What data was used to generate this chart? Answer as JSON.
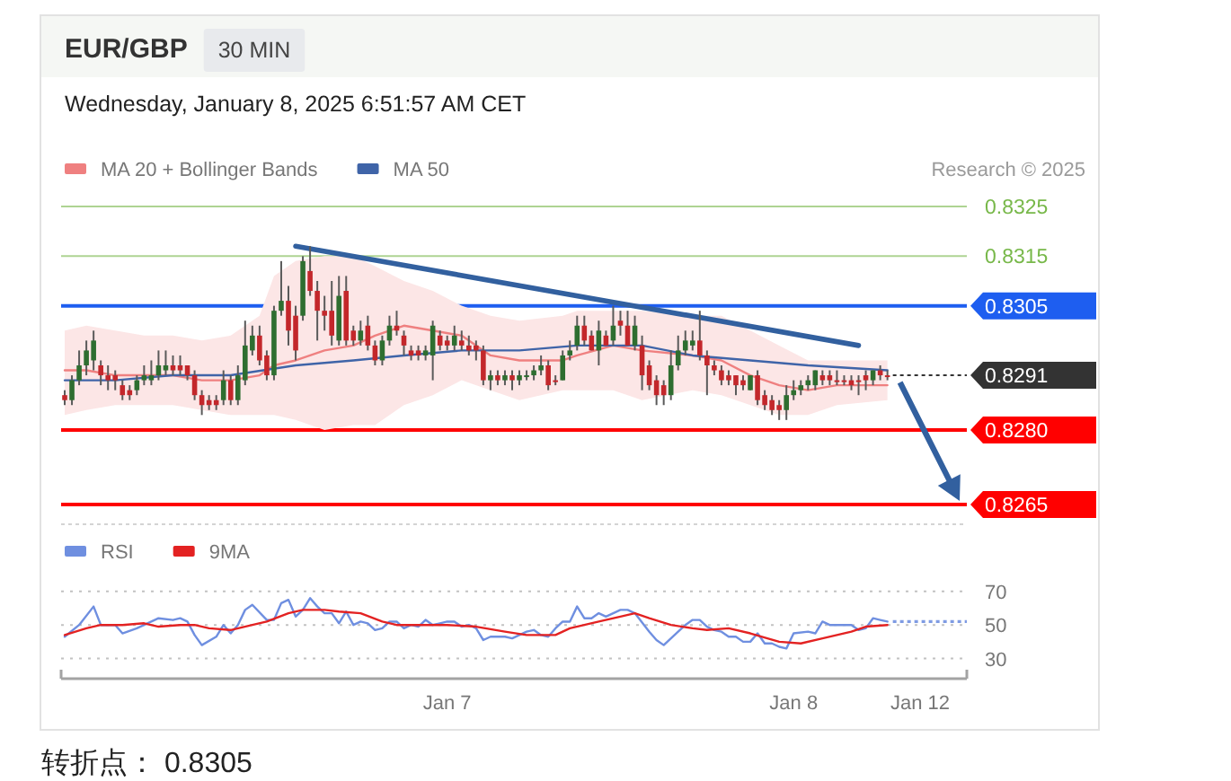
{
  "chart_data": [
    {
      "type": "candlestick",
      "title": "EUR/GBP",
      "subtitle": "Wednesday, January 8, 2025 6:51:57 AM CET",
      "annotations": [
        "30 MIN",
        "Research © 2025"
      ],
      "x": [
        "2025-01-05T21:30",
        "2025-01-05T22:00",
        "2025-01-05T22:30",
        "2025-01-05T23:00",
        "2025-01-05T23:30",
        "2025-01-06T00:00",
        "2025-01-06T00:30",
        "2025-01-06T01:00",
        "2025-01-06T01:30",
        "2025-01-06T02:00",
        "2025-01-06T02:30",
        "2025-01-06T03:00",
        "2025-01-06T03:30",
        "2025-01-06T04:00",
        "2025-01-06T04:30",
        "2025-01-06T05:00",
        "2025-01-06T05:30",
        "2025-01-06T06:00",
        "2025-01-06T06:30",
        "2025-01-06T07:00",
        "2025-01-06T07:30",
        "2025-01-06T08:00",
        "2025-01-06T08:30",
        "2025-01-06T09:00",
        "2025-01-06T09:30",
        "2025-01-06T10:00",
        "2025-01-06T10:30",
        "2025-01-06T11:00",
        "2025-01-06T11:30",
        "2025-01-06T12:00",
        "2025-01-06T12:30",
        "2025-01-06T13:00",
        "2025-01-06T13:30",
        "2025-01-06T14:00",
        "2025-01-06T14:30",
        "2025-01-06T15:00",
        "2025-01-06T15:30",
        "2025-01-06T16:00",
        "2025-01-06T16:30",
        "2025-01-06T17:00",
        "2025-01-06T17:30",
        "2025-01-06T18:00",
        "2025-01-06T18:30",
        "2025-01-06T19:00",
        "2025-01-06T19:30",
        "2025-01-06T20:00",
        "2025-01-06T20:30",
        "2025-01-06T21:00",
        "2025-01-06T21:30",
        "2025-01-06T22:00",
        "2025-01-06T22:30",
        "2025-01-06T23:00",
        "2025-01-06T23:30",
        "2025-01-07T00:00",
        "2025-01-07T00:30",
        "2025-01-07T01:00",
        "2025-01-07T01:30",
        "2025-01-07T02:00",
        "2025-01-07T02:30",
        "2025-01-07T03:00",
        "2025-01-07T03:30",
        "2025-01-07T04:00",
        "2025-01-07T04:30",
        "2025-01-07T05:00",
        "2025-01-07T05:30",
        "2025-01-07T06:00",
        "2025-01-07T06:30",
        "2025-01-07T07:00",
        "2025-01-07T07:30",
        "2025-01-07T08:00",
        "2025-01-07T08:30",
        "2025-01-07T09:00",
        "2025-01-07T09:30",
        "2025-01-07T10:00",
        "2025-01-07T10:30",
        "2025-01-07T11:00",
        "2025-01-07T11:30",
        "2025-01-07T12:00",
        "2025-01-07T12:30",
        "2025-01-07T13:00",
        "2025-01-07T13:30",
        "2025-01-07T14:00",
        "2025-01-07T14:30",
        "2025-01-07T15:00",
        "2025-01-07T15:30",
        "2025-01-07T16:00",
        "2025-01-07T16:30",
        "2025-01-07T17:00",
        "2025-01-07T17:30",
        "2025-01-07T18:00",
        "2025-01-07T18:30",
        "2025-01-07T19:00",
        "2025-01-07T19:30",
        "2025-01-07T20:00",
        "2025-01-07T20:30",
        "2025-01-07T21:00",
        "2025-01-07T21:30",
        "2025-01-07T22:00",
        "2025-01-07T22:30",
        "2025-01-07T23:00",
        "2025-01-07T23:30",
        "2025-01-08T00:00",
        "2025-01-08T00:30",
        "2025-01-08T01:00",
        "2025-01-08T01:30",
        "2025-01-08T02:00",
        "2025-01-08T02:30",
        "2025-01-08T03:00",
        "2025-01-08T03:30",
        "2025-01-08T04:00",
        "2025-01-08T04:30",
        "2025-01-08T05:00",
        "2025-01-08T05:30",
        "2025-01-08T06:00",
        "2025-01-08T06:30"
      ],
      "ohlc": [
        [
          0.8287,
          0.8288,
          0.8285,
          0.8286
        ],
        [
          0.8286,
          0.8291,
          0.8285,
          0.829
        ],
        [
          0.829,
          0.8296,
          0.8289,
          0.8293
        ],
        [
          0.8293,
          0.8298,
          0.8291,
          0.8296
        ],
        [
          0.8294,
          0.83,
          0.8292,
          0.8298
        ],
        [
          0.8293,
          0.8294,
          0.8289,
          0.8291
        ],
        [
          0.8291,
          0.8293,
          0.8288,
          0.829
        ],
        [
          0.8291,
          0.8292,
          0.8288,
          0.829
        ],
        [
          0.8289,
          0.829,
          0.8286,
          0.8287
        ],
        [
          0.8288,
          0.8289,
          0.8286,
          0.8287
        ],
        [
          0.8288,
          0.8291,
          0.8287,
          0.829
        ],
        [
          0.829,
          0.8293,
          0.8289,
          0.8291
        ],
        [
          0.829,
          0.8294,
          0.8289,
          0.8291
        ],
        [
          0.8291,
          0.8296,
          0.829,
          0.8293
        ],
        [
          0.8292,
          0.8296,
          0.8291,
          0.8293
        ],
        [
          0.8293,
          0.8295,
          0.8291,
          0.8292
        ],
        [
          0.8293,
          0.8295,
          0.8291,
          0.8292
        ],
        [
          0.8293,
          0.8293,
          0.829,
          0.8291
        ],
        [
          0.8291,
          0.8292,
          0.8286,
          0.8287
        ],
        [
          0.8287,
          0.8288,
          0.8283,
          0.8285
        ],
        [
          0.8286,
          0.8287,
          0.8284,
          0.8285
        ],
        [
          0.8286,
          0.8287,
          0.8284,
          0.8285
        ],
        [
          0.8286,
          0.8292,
          0.8285,
          0.829
        ],
        [
          0.829,
          0.8291,
          0.8285,
          0.8286
        ],
        [
          0.8286,
          0.8293,
          0.8285,
          0.8291
        ],
        [
          0.829,
          0.8302,
          0.8289,
          0.8297
        ],
        [
          0.8296,
          0.8301,
          0.8295,
          0.8299
        ],
        [
          0.8299,
          0.8301,
          0.8293,
          0.8294
        ],
        [
          0.8295,
          0.8296,
          0.829,
          0.8291
        ],
        [
          0.8291,
          0.8305,
          0.829,
          0.8304
        ],
        [
          0.8304,
          0.8314,
          0.8303,
          0.8306
        ],
        [
          0.8306,
          0.8309,
          0.8297,
          0.83
        ],
        [
          0.8303,
          0.8305,
          0.8294,
          0.8296
        ],
        [
          0.8303,
          0.8315,
          0.8302,
          0.8314
        ],
        [
          0.8312,
          0.8317,
          0.8307,
          0.8308
        ],
        [
          0.8308,
          0.831,
          0.8298,
          0.8304
        ],
        [
          0.8304,
          0.8307,
          0.83,
          0.8303
        ],
        [
          0.8304,
          0.831,
          0.8297,
          0.8299
        ],
        [
          0.8298,
          0.8311,
          0.8297,
          0.8307
        ],
        [
          0.8308,
          0.8311,
          0.8297,
          0.8298
        ],
        [
          0.83,
          0.8301,
          0.8297,
          0.8298
        ],
        [
          0.8298,
          0.8302,
          0.8297,
          0.83
        ],
        [
          0.8301,
          0.8303,
          0.8296,
          0.8297
        ],
        [
          0.8297,
          0.8298,
          0.8293,
          0.8294
        ],
        [
          0.8294,
          0.8299,
          0.8293,
          0.8298
        ],
        [
          0.8298,
          0.8303,
          0.8297,
          0.8301
        ],
        [
          0.8301,
          0.8304,
          0.8299,
          0.83
        ],
        [
          0.8299,
          0.83,
          0.8295,
          0.8297
        ],
        [
          0.8296,
          0.8297,
          0.8294,
          0.8295
        ],
        [
          0.8296,
          0.8297,
          0.8294,
          0.8295
        ],
        [
          0.8295,
          0.8297,
          0.8294,
          0.8296
        ],
        [
          0.8295,
          0.8302,
          0.829,
          0.8301
        ],
        [
          0.8299,
          0.83,
          0.8296,
          0.8297
        ],
        [
          0.8298,
          0.8299,
          0.8296,
          0.8297
        ],
        [
          0.8297,
          0.8301,
          0.8296,
          0.8299
        ],
        [
          0.8298,
          0.83,
          0.8296,
          0.8297
        ],
        [
          0.8297,
          0.8299,
          0.8295,
          0.8296
        ],
        [
          0.8297,
          0.8298,
          0.8294,
          0.8296
        ],
        [
          0.8296,
          0.8297,
          0.8289,
          0.829
        ],
        [
          0.829,
          0.8292,
          0.8288,
          0.8291
        ],
        [
          0.8291,
          0.8292,
          0.8289,
          0.829
        ],
        [
          0.829,
          0.8292,
          0.8289,
          0.8291
        ],
        [
          0.8291,
          0.8292,
          0.8288,
          0.829
        ],
        [
          0.829,
          0.8292,
          0.8289,
          0.8291
        ],
        [
          0.8291,
          0.8292,
          0.829,
          0.8291
        ],
        [
          0.8291,
          0.8293,
          0.829,
          0.8292
        ],
        [
          0.8292,
          0.8295,
          0.8291,
          0.8293
        ],
        [
          0.8293,
          0.8294,
          0.8288,
          0.8289
        ],
        [
          0.829,
          0.8291,
          0.8289,
          0.829
        ],
        [
          0.829,
          0.8296,
          0.829,
          0.8295
        ],
        [
          0.8295,
          0.8298,
          0.8294,
          0.8296
        ],
        [
          0.8297,
          0.8303,
          0.8296,
          0.8301
        ],
        [
          0.8301,
          0.8303,
          0.8297,
          0.8298
        ],
        [
          0.8299,
          0.83,
          0.8296,
          0.8296
        ],
        [
          0.8296,
          0.8302,
          0.8293,
          0.83
        ],
        [
          0.8299,
          0.83,
          0.8297,
          0.8297
        ],
        [
          0.8298,
          0.8305,
          0.8297,
          0.8301
        ],
        [
          0.8302,
          0.8304,
          0.8299,
          0.8301
        ],
        [
          0.8301,
          0.8304,
          0.8297,
          0.8297
        ],
        [
          0.8297,
          0.8303,
          0.8296,
          0.8301
        ],
        [
          0.8297,
          0.8299,
          0.8288,
          0.8291
        ],
        [
          0.8293,
          0.8294,
          0.8288,
          0.8289
        ],
        [
          0.829,
          0.8291,
          0.8285,
          0.8287
        ],
        [
          0.8289,
          0.829,
          0.8285,
          0.8287
        ],
        [
          0.8287,
          0.8296,
          0.8286,
          0.8293
        ],
        [
          0.8293,
          0.8299,
          0.8292,
          0.8296
        ],
        [
          0.8296,
          0.83,
          0.8295,
          0.8298
        ],
        [
          0.8297,
          0.83,
          0.8296,
          0.8298
        ],
        [
          0.8298,
          0.8304,
          0.8294,
          0.8295
        ],
        [
          0.8295,
          0.8296,
          0.8287,
          0.8293
        ],
        [
          0.8293,
          0.8294,
          0.8291,
          0.8292
        ],
        [
          0.8292,
          0.8293,
          0.8289,
          0.829
        ],
        [
          0.8291,
          0.8292,
          0.8289,
          0.829
        ],
        [
          0.8291,
          0.8291,
          0.8287,
          0.8289
        ],
        [
          0.829,
          0.8291,
          0.8288,
          0.8289
        ],
        [
          0.8288,
          0.8291,
          0.8288,
          0.8291
        ],
        [
          0.8291,
          0.8292,
          0.8285,
          0.8286
        ],
        [
          0.8287,
          0.8288,
          0.8284,
          0.8285
        ],
        [
          0.8286,
          0.8287,
          0.8283,
          0.8284
        ],
        [
          0.8285,
          0.8286,
          0.8282,
          0.8284
        ],
        [
          0.8284,
          0.8289,
          0.8282,
          0.8287
        ],
        [
          0.8287,
          0.829,
          0.8286,
          0.8288
        ],
        [
          0.8288,
          0.829,
          0.8287,
          0.8289
        ],
        [
          0.8289,
          0.8291,
          0.8288,
          0.829
        ],
        [
          0.8289,
          0.8292,
          0.8288,
          0.8292
        ],
        [
          0.8291,
          0.8292,
          0.8289,
          0.829
        ],
        [
          0.8291,
          0.8292,
          0.8289,
          0.829
        ],
        [
          0.829,
          0.8292,
          0.8289,
          0.829
        ],
        [
          0.829,
          0.8291,
          0.8289,
          0.829
        ],
        [
          0.829,
          0.8291,
          0.8288,
          0.8289
        ],
        [
          0.829,
          0.8291,
          0.8287,
          0.829
        ],
        [
          0.8291,
          0.8292,
          0.8288,
          0.829
        ],
        [
          0.829,
          0.8292,
          0.8289,
          0.8292
        ],
        [
          0.8292,
          0.8293,
          0.829,
          0.8291
        ],
        [
          0.8291,
          0.8292,
          0.829,
          0.8291
        ]
      ],
      "colors": [
        "#c3272b",
        "#2e6e30",
        "#2e6e30",
        "#2e6e30",
        "#2e6e30",
        "#c3272b",
        "#c3272b",
        "#c3272b",
        "#c3272b",
        "#c3272b",
        "#2e6e30",
        "#2e6e30",
        "#2e6e30",
        "#2e6e30",
        "#2e6e30",
        "#c3272b",
        "#c3272b",
        "#c3272b",
        "#c3272b",
        "#c3272b",
        "#c3272b",
        "#c3272b",
        "#2e6e30",
        "#c3272b",
        "#2e6e30",
        "#2e6e30",
        "#2e6e30",
        "#c3272b",
        "#c3272b",
        "#2e6e30",
        "#2e6e30",
        "#c3272b",
        "#c3272b",
        "#2e6e30",
        "#c3272b",
        "#c3272b",
        "#c3272b",
        "#c3272b",
        "#2e6e30",
        "#c3272b",
        "#c3272b",
        "#2e6e30",
        "#c3272b",
        "#c3272b",
        "#2e6e30",
        "#2e6e30",
        "#c3272b",
        "#c3272b",
        "#c3272b",
        "#c3272b",
        "#2e6e30",
        "#2e6e30",
        "#c3272b",
        "#c3272b",
        "#2e6e30",
        "#c3272b",
        "#c3272b",
        "#c3272b",
        "#c3272b",
        "#2e6e30",
        "#c3272b",
        "#2e6e30",
        "#c3272b",
        "#2e6e30",
        "#2e6e30",
        "#2e6e30",
        "#2e6e30",
        "#c3272b",
        "#c3272b",
        "#2e6e30",
        "#2e6e30",
        "#2e6e30",
        "#c3272b",
        "#c3272b",
        "#2e6e30",
        "#c3272b",
        "#2e6e30",
        "#c3272b",
        "#c3272b",
        "#2e6e30",
        "#c3272b",
        "#c3272b",
        "#c3272b",
        "#c3272b",
        "#2e6e30",
        "#2e6e30",
        "#2e6e30",
        "#2e6e30",
        "#c3272b",
        "#c3272b",
        "#c3272b",
        "#c3272b",
        "#c3272b",
        "#c3272b",
        "#c3272b",
        "#2e6e30",
        "#c3272b",
        "#c3272b",
        "#c3272b",
        "#c3272b",
        "#2e6e30",
        "#2e6e30",
        "#2e6e30",
        "#2e6e30",
        "#2e6e30",
        "#c3272b",
        "#c3272b",
        "#c3272b",
        "#c3272b",
        "#c3272b",
        "#c3272b",
        "#c3272b",
        "#2e6e30",
        "#c3272b",
        "#c3272b"
      ],
      "series": [
        {
          "name": "MA 20 + Bollinger Bands",
          "type": "line",
          "color": "#ef8080",
          "x": [
            "2025-01-05T21:30",
            "2025-01-05T23:00",
            "2025-01-06T01:00",
            "2025-01-06T03:00",
            "2025-01-06T05:00",
            "2025-01-06T07:00",
            "2025-01-06T09:00",
            "2025-01-06T11:00",
            "2025-01-06T12:00",
            "2025-01-06T13:30",
            "2025-01-06T15:30",
            "2025-01-06T17:30",
            "2025-01-06T19:00",
            "2025-01-06T21:00",
            "2025-01-06T23:00",
            "2025-01-07T01:00",
            "2025-01-07T03:00",
            "2025-01-07T05:00",
            "2025-01-07T08:00",
            "2025-01-07T09:00",
            "2025-01-07T11:30",
            "2025-01-07T13:30",
            "2025-01-07T17:00",
            "2025-01-07T19:00",
            "2025-01-07T21:00",
            "2025-01-07T23:00",
            "2025-01-08T01:00",
            "2025-01-08T03:00",
            "2025-01-08T06:30"
          ],
          "values": [
            0.8292,
            0.8292,
            0.8291,
            0.8291,
            0.8291,
            0.829,
            0.829,
            0.8291,
            0.8293,
            0.8294,
            0.8296,
            0.8297,
            0.8299,
            0.8301,
            0.83,
            0.8299,
            0.8295,
            0.8294,
            0.8294,
            0.8295,
            0.8297,
            0.8296,
            0.8295,
            0.8294,
            0.8291,
            0.8289,
            0.8288,
            0.8289,
            0.8289
          ],
          "upper": [
            0.83,
            0.8301,
            0.83,
            0.8299,
            0.8299,
            0.8298,
            0.8299,
            0.8303,
            0.8311,
            0.8314,
            0.8315,
            0.8315,
            0.8313,
            0.831,
            0.8308,
            0.8305,
            0.8303,
            0.8302,
            0.8303,
            0.8304,
            0.8304,
            0.8304,
            0.8303,
            0.8303,
            0.83,
            0.8297,
            0.8294,
            0.8294,
            0.8294
          ],
          "lower": [
            0.8283,
            0.8284,
            0.8285,
            0.8285,
            0.8285,
            0.8284,
            0.8283,
            0.8283,
            0.8283,
            0.8282,
            0.828,
            0.8281,
            0.8281,
            0.8285,
            0.8287,
            0.829,
            0.8288,
            0.8286,
            0.8288,
            0.8288,
            0.8288,
            0.8286,
            0.8288,
            0.8287,
            0.8285,
            0.8283,
            0.8283,
            0.8285,
            0.8286
          ]
        },
        {
          "name": "MA 50",
          "type": "line",
          "color": "#3f64a8",
          "x": [
            "2025-01-05T21:30",
            "2025-01-06T01:00",
            "2025-01-06T05:00",
            "2025-01-06T09:00",
            "2025-01-06T13:30",
            "2025-01-06T17:30",
            "2025-01-06T21:00",
            "2025-01-07T01:00",
            "2025-01-07T05:00",
            "2025-01-07T09:00",
            "2025-01-07T13:30",
            "2025-01-07T17:00",
            "2025-01-07T21:00",
            "2025-01-08T01:00",
            "2025-01-08T06:30"
          ],
          "values": [
            0.829,
            0.829,
            0.8291,
            0.8291,
            0.8293,
            0.8294,
            0.8295,
            0.8296,
            0.8296,
            0.8297,
            0.8297,
            0.8295,
            0.8294,
            0.8293,
            0.8292
          ]
        },
        {
          "type": "line",
          "color": "#32609f",
          "x": [
            "2025-01-06T13:30",
            "2025-01-08T04:30"
          ],
          "values": [
            0.8317,
            0.8297
          ]
        }
      ],
      "xlim": [
        "2025-01-05T21:15",
        "2025-01-08T12:00"
      ],
      "ylim": [
        0.8261,
        0.8325
      ],
      "yticks": [
        0.8325,
        0.8315,
        0.8305,
        0.8291,
        {
          "value": 0.828,
          "label": "0.8280"
        },
        0.8265
      ],
      "ref_lines": [
        {
          "axis": "y",
          "value": 0.8325,
          "color": "#78b84a"
        },
        {
          "axis": "y",
          "value": 0.8315,
          "color": "#78b84a"
        },
        {
          "axis": "y",
          "value": 0.8305,
          "color": "#1e5ef0"
        },
        {
          "axis": "y",
          "value": 0.8291,
          "color": "#333333",
          "line_style": "dotted"
        },
        {
          "axis": "y",
          "value": 0.828,
          "color": "#ff0000"
        },
        {
          "axis": "y",
          "value": 0.8265,
          "color": "#ff0000"
        }
      ],
      "legend": "top left",
      "tick_labels": "y"
    },
    {
      "type": "line",
      "annotations": [
        "Jan 12",
        "转折点： 0.8305"
      ],
      "series": [
        {
          "name": "RSI",
          "color": "#6f8fe0",
          "x": [
            "2025-01-05T21:30",
            "2025-01-05T22:30",
            "2025-01-05T23:30",
            "2025-01-06T00:00",
            "2025-01-06T01:00",
            "2025-01-06T01:30",
            "2025-01-06T02:30",
            "2025-01-06T03:00",
            "2025-01-06T04:00",
            "2025-01-06T05:00",
            "2025-01-06T05:30",
            "2025-01-06T06:00",
            "2025-01-06T06:30",
            "2025-01-06T07:00",
            "2025-01-06T08:00",
            "2025-01-06T08:30",
            "2025-01-06T09:00",
            "2025-01-06T09:30",
            "2025-01-06T10:00",
            "2025-01-06T10:30",
            "2025-01-06T11:30",
            "2025-01-06T12:00",
            "2025-01-06T12:30",
            "2025-01-06T13:00",
            "2025-01-06T13:30",
            "2025-01-06T14:00",
            "2025-01-06T14:30",
            "2025-01-06T15:00",
            "2025-01-06T15:30",
            "2025-01-06T16:00",
            "2025-01-06T16:30",
            "2025-01-06T17:00",
            "2025-01-06T17:30",
            "2025-01-06T18:00",
            "2025-01-06T18:30",
            "2025-01-06T19:00",
            "2025-01-06T19:30",
            "2025-01-06T20:00",
            "2025-01-06T20:30",
            "2025-01-06T21:00",
            "2025-01-06T21:30",
            "2025-01-06T22:00",
            "2025-01-06T22:30",
            "2025-01-06T23:00",
            "2025-01-06T23:30",
            "2025-01-07T00:00",
            "2025-01-07T00:30",
            "2025-01-07T01:00",
            "2025-01-07T01:30",
            "2025-01-07T02:00",
            "2025-01-07T02:30",
            "2025-01-07T03:00",
            "2025-01-07T04:00",
            "2025-01-07T04:30",
            "2025-01-07T05:00",
            "2025-01-07T05:30",
            "2025-01-07T06:00",
            "2025-01-07T06:30",
            "2025-01-07T07:00",
            "2025-01-07T07:30",
            "2025-01-07T08:00",
            "2025-01-07T08:30",
            "2025-01-07T09:00",
            "2025-01-07T09:30",
            "2025-01-07T10:00",
            "2025-01-07T10:30",
            "2025-01-07T11:00",
            "2025-01-07T11:30",
            "2025-01-07T12:00",
            "2025-01-07T12:30",
            "2025-01-07T13:00",
            "2025-01-07T14:00",
            "2025-01-07T14:30",
            "2025-01-07T15:00",
            "2025-01-07T16:00",
            "2025-01-07T16:30",
            "2025-01-07T17:00",
            "2025-01-07T17:30",
            "2025-01-07T18:00",
            "2025-01-07T18:30",
            "2025-01-07T19:00",
            "2025-01-07T19:30",
            "2025-01-07T20:00",
            "2025-01-07T20:30",
            "2025-01-07T21:00",
            "2025-01-07T21:30",
            "2025-01-07T22:00",
            "2025-01-07T22:30",
            "2025-01-07T23:00",
            "2025-01-07T23:30",
            "2025-01-08T00:00",
            "2025-01-08T01:00",
            "2025-01-08T01:30",
            "2025-01-08T02:00",
            "2025-01-08T02:30",
            "2025-01-08T03:00",
            "2025-01-08T04:00",
            "2025-01-08T04:30",
            "2025-01-08T05:00",
            "2025-01-08T05:30",
            "2025-01-08T06:00",
            "2025-01-08T06:30"
          ],
          "values": [
            43,
            50,
            61,
            50,
            50,
            45,
            48,
            50,
            54,
            53,
            54,
            52,
            44,
            38,
            43,
            50,
            45,
            50,
            59,
            62,
            53,
            53,
            63,
            65,
            55,
            59,
            66,
            61,
            57,
            57,
            51,
            58,
            50,
            52,
            51,
            47,
            48,
            52,
            52,
            48,
            50,
            49,
            53,
            50,
            51,
            52,
            52,
            49,
            50,
            48,
            41,
            43,
            43,
            42,
            44,
            46,
            47,
            44,
            43,
            48,
            52,
            52,
            61,
            54,
            54,
            57,
            55,
            57,
            59,
            59,
            57,
            46,
            41,
            38,
            46,
            50,
            53,
            53,
            49,
            47,
            46,
            43,
            43,
            40,
            40,
            45,
            39,
            39,
            37,
            36,
            45,
            46,
            45,
            52,
            50,
            50,
            50,
            47,
            48,
            54,
            53,
            52
          ]
        },
        {
          "name": "9MA",
          "color": "#e32222",
          "x": [
            "2025-01-05T21:30",
            "2025-01-05T23:00",
            "2025-01-06T00:00",
            "2025-01-06T01:30",
            "2025-01-06T03:00",
            "2025-01-06T04:00",
            "2025-01-06T05:30",
            "2025-01-06T06:30",
            "2025-01-06T07:30",
            "2025-01-06T09:00",
            "2025-01-06T10:30",
            "2025-01-06T11:30",
            "2025-01-06T13:00",
            "2025-01-06T14:00",
            "2025-01-06T15:30",
            "2025-01-06T16:30",
            "2025-01-06T18:00",
            "2025-01-06T19:30",
            "2025-01-06T20:30",
            "2025-01-06T22:30",
            "2025-01-07T00:00",
            "2025-01-07T02:00",
            "2025-01-07T04:00",
            "2025-01-07T05:30",
            "2025-01-07T07:30",
            "2025-01-07T08:30",
            "2025-01-07T10:30",
            "2025-01-07T12:00",
            "2025-01-07T13:00",
            "2025-01-07T14:00",
            "2025-01-07T15:30",
            "2025-01-07T17:00",
            "2025-01-07T18:00",
            "2025-01-07T19:30",
            "2025-01-07T21:00",
            "2025-01-07T23:00",
            "2025-01-08T00:30",
            "2025-01-08T02:00",
            "2025-01-08T04:00",
            "2025-01-08T05:00",
            "2025-01-08T06:30"
          ],
          "values": [
            44,
            48,
            50,
            50,
            51,
            49,
            50,
            50,
            48,
            47,
            50,
            52,
            57,
            59,
            59,
            58,
            57,
            52,
            50,
            50,
            50,
            49,
            46,
            44,
            44,
            48,
            52,
            55,
            57,
            54,
            50,
            48,
            47,
            48,
            45,
            40,
            39,
            42,
            46,
            49,
            50
          ]
        }
      ],
      "xlim": [
        "2025-01-05T21:15",
        "2025-01-08T12:00"
      ],
      "xticks": [
        {
          "value": "2025-01-07T00:00",
          "label": "Jan 7"
        },
        {
          "value": "2025-01-08T00:00",
          "label": "Jan 8"
        }
      ],
      "ylim": [
        18,
        70
      ],
      "yticks": [
        30,
        50,
        70
      ],
      "grid": "y",
      "legend": "top left",
      "ref_lines": [
        {
          "axis": "y",
          "value": 52,
          "color": "#7f9be3",
          "line_style": "dotted"
        }
      ]
    }
  ]
}
